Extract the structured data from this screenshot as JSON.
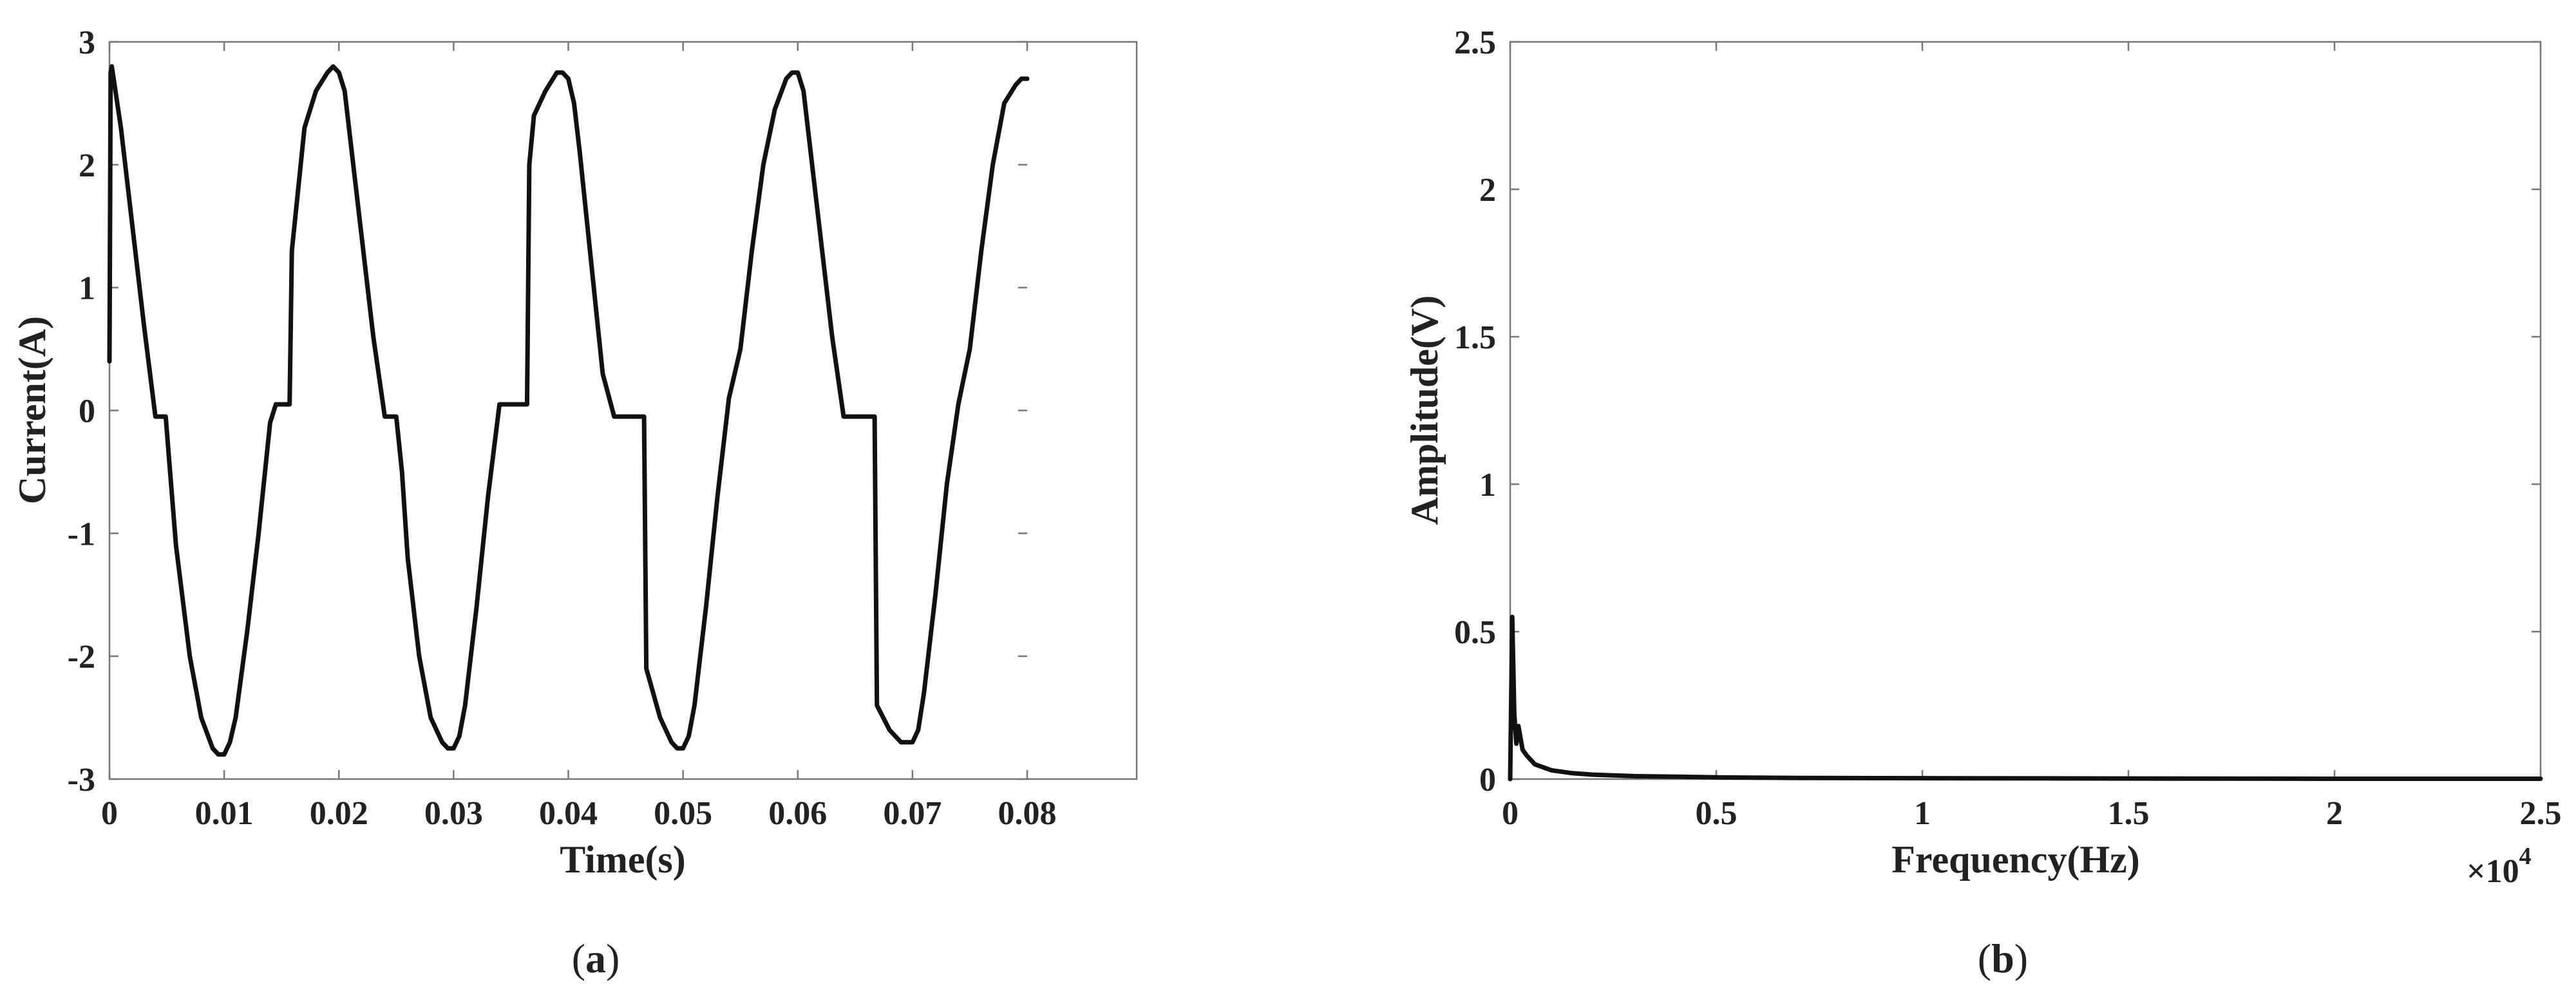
{
  "panels": [
    {
      "label_open": "(",
      "label_letter": "a",
      "label_close": ")"
    },
    {
      "label_open": "(",
      "label_letter": "b",
      "label_close": ")"
    }
  ],
  "chart_data": [
    {
      "type": "line",
      "title": "",
      "xlabel": "Time(s)",
      "ylabel": "Current(A)",
      "xlim": [
        0,
        0.08
      ],
      "ylim": [
        -3,
        3
      ],
      "xticks": [
        0,
        0.01,
        0.02,
        0.03,
        0.04,
        0.05,
        0.06,
        0.07,
        0.08
      ],
      "xtick_labels": [
        "0",
        "0.01",
        "0.02",
        "0.03",
        "0.04",
        "0.05",
        "0.06",
        "0.07",
        "0.08"
      ],
      "yticks": [
        -3,
        -2,
        -1,
        0,
        1,
        2,
        3
      ],
      "ytick_labels": [
        "-3",
        "-2",
        "-1",
        "0",
        "1",
        "2",
        "3"
      ],
      "grid": false,
      "series": [
        {
          "color": "#111111",
          "x": [
            0,
            0.0001,
            0.0002,
            0.001,
            0.002,
            0.003,
            0.004,
            0.0046,
            0.0049,
            0.0052,
            0.0058,
            0.007,
            0.008,
            0.009,
            0.0095,
            0.01,
            0.0105,
            0.011,
            0.012,
            0.013,
            0.014,
            0.0145,
            0.015,
            0.0157,
            0.0159,
            0.017,
            0.018,
            0.019,
            0.0195,
            0.02,
            0.0205,
            0.021,
            0.022,
            0.023,
            0.024,
            0.0245,
            0.025,
            0.0255,
            0.026,
            0.027,
            0.028,
            0.029,
            0.0295,
            0.03,
            0.0305,
            0.031,
            0.032,
            0.033,
            0.034,
            0.035,
            0.0364,
            0.0366,
            0.037,
            0.038,
            0.039,
            0.0395,
            0.04,
            0.0405,
            0.041,
            0.042,
            0.043,
            0.044,
            0.0445,
            0.0466,
            0.0468,
            0.048,
            0.049,
            0.0495,
            0.05,
            0.0505,
            0.051,
            0.052,
            0.053,
            0.054,
            0.055,
            0.056,
            0.057,
            0.058,
            0.059,
            0.0595,
            0.06,
            0.0605,
            0.061,
            0.062,
            0.063,
            0.064,
            0.0645,
            0.065,
            0.0658,
            0.0667,
            0.0669,
            0.068,
            0.069,
            0.0695,
            0.07,
            0.0705,
            0.071,
            0.072,
            0.073,
            0.074,
            0.075,
            0.076,
            0.077,
            0.078,
            0.079,
            0.0795,
            0.08
          ],
          "y": [
            0.4,
            2.75,
            2.8,
            2.3,
            1.5,
            0.7,
            -0.05,
            -0.05,
            -0.05,
            -0.4,
            -1.1,
            -2.0,
            -2.5,
            -2.75,
            -2.8,
            -2.8,
            -2.7,
            -2.5,
            -1.8,
            -1.0,
            -0.1,
            0.05,
            0.05,
            0.05,
            1.3,
            2.3,
            2.6,
            2.75,
            2.8,
            2.75,
            2.6,
            2.2,
            1.4,
            0.6,
            -0.05,
            -0.05,
            -0.05,
            -0.5,
            -1.2,
            -2.0,
            -2.5,
            -2.7,
            -2.75,
            -2.75,
            -2.65,
            -2.4,
            -1.6,
            -0.7,
            0.05,
            0.05,
            0.05,
            2.0,
            2.4,
            2.6,
            2.75,
            2.75,
            2.7,
            2.5,
            2.1,
            1.2,
            0.3,
            -0.05,
            -0.05,
            -0.05,
            -2.1,
            -2.5,
            -2.7,
            -2.75,
            -2.75,
            -2.65,
            -2.4,
            -1.6,
            -0.7,
            0.1,
            0.5,
            1.3,
            2.0,
            2.45,
            2.7,
            2.75,
            2.75,
            2.6,
            2.2,
            1.4,
            0.6,
            -0.05,
            -0.05,
            -0.05,
            -0.05,
            -0.05,
            -2.4,
            -2.6,
            -2.7,
            -2.7,
            -2.7,
            -2.6,
            -2.3,
            -1.5,
            -0.6,
            0.05,
            0.5,
            1.3,
            2.0,
            2.5,
            2.65,
            2.7,
            2.7
          ]
        }
      ]
    },
    {
      "type": "line",
      "title": "",
      "xlabel": "Frequency(Hz)",
      "ylabel": "Amplitude(V)",
      "x_multiplier_base": "×10",
      "x_multiplier_exponent": "4",
      "xlim": [
        0,
        25000
      ],
      "ylim": [
        0,
        2.5
      ],
      "xticks": [
        0,
        5000,
        10000,
        15000,
        20000,
        25000
      ],
      "xtick_labels": [
        "0",
        "0.5",
        "1",
        "1.5",
        "2",
        "2.5"
      ],
      "yticks": [
        0,
        0.5,
        1,
        1.5,
        2,
        2.5
      ],
      "ytick_labels": [
        "0",
        "0.5",
        "1",
        "1.5",
        "2",
        "2.5"
      ],
      "grid": false,
      "series": [
        {
          "color": "#111111",
          "x": [
            0,
            50,
            100,
            150,
            200,
            300,
            400,
            600,
            800,
            1000,
            1500,
            2000,
            3000,
            4000,
            5000,
            7000,
            10000,
            15000,
            20000,
            25000
          ],
          "y": [
            0.0,
            0.55,
            0.22,
            0.12,
            0.18,
            0.1,
            0.08,
            0.05,
            0.04,
            0.03,
            0.02,
            0.015,
            0.01,
            0.008,
            0.006,
            0.004,
            0.003,
            0.002,
            0.001,
            0.001
          ]
        }
      ]
    }
  ]
}
